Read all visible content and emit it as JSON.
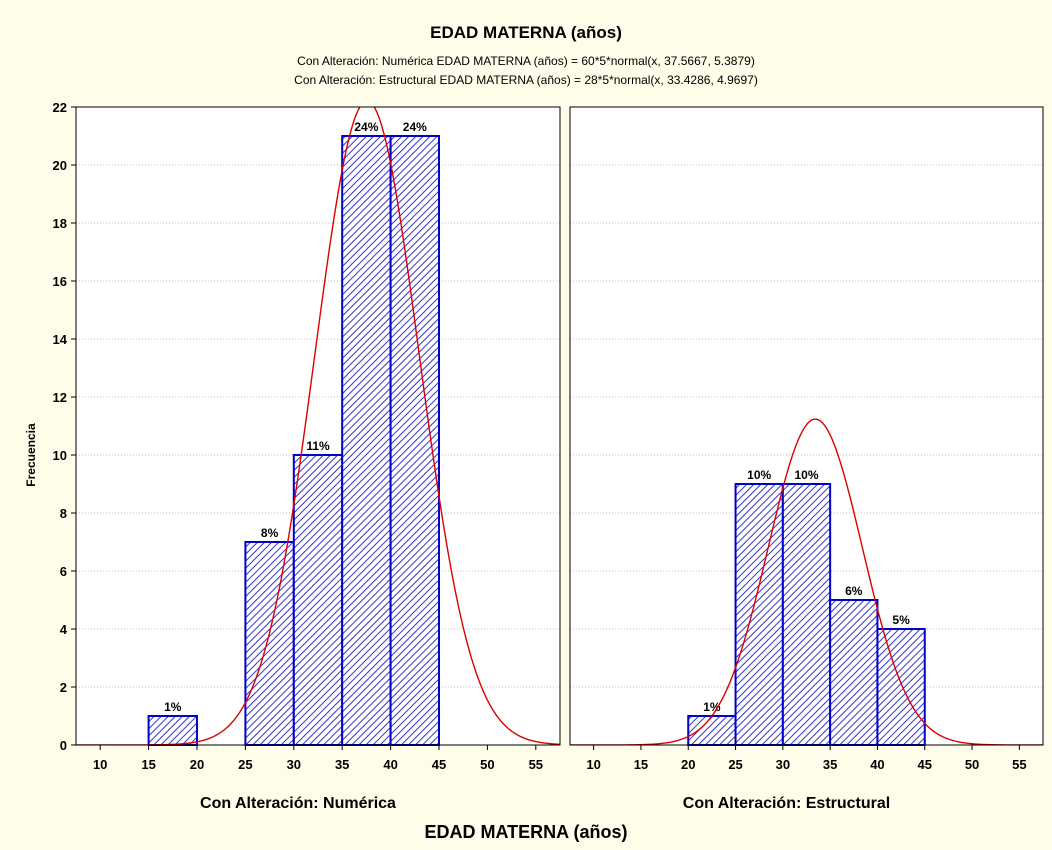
{
  "colors": {
    "background": "#fdfde9",
    "plot_background": "#ffffff",
    "bar_stroke": "#0000cc",
    "bar_hatch": "#3333cc",
    "curve": "#dd0000",
    "grid": "#bdbdbd"
  },
  "chart_data": {
    "type": "bar",
    "title": "EDAD MATERNA (años)",
    "subtitles": [
      "Con Alteración: Numérica EDAD MATERNA (años) = 60*5*normal(x, 37.5667, 5.3879)",
      "Con Alteración: Estructural EDAD MATERNA (años) = 28*5*normal(x, 33.4286, 4.9697)"
    ],
    "xlabel": "EDAD MATERNA (años)",
    "ylabel": "Frecuencia",
    "ylim": [
      0,
      22
    ],
    "yticks": [
      0,
      2,
      4,
      6,
      8,
      10,
      12,
      14,
      16,
      18,
      20,
      22
    ],
    "xlim": [
      7.5,
      57.5
    ],
    "xticks": [
      10,
      15,
      20,
      25,
      30,
      35,
      40,
      45,
      50,
      55
    ],
    "grid": true,
    "panels": [
      {
        "label": "Con Alteración: Numérica",
        "bins": [
          {
            "from": 15,
            "to": 20,
            "count": 1,
            "label": "1%"
          },
          {
            "from": 25,
            "to": 30,
            "count": 7,
            "label": "8%"
          },
          {
            "from": 30,
            "to": 35,
            "count": 10,
            "label": "11%"
          },
          {
            "from": 35,
            "to": 40,
            "count": 21,
            "label": "24%"
          },
          {
            "from": 40,
            "to": 45,
            "count": 21,
            "label": "24%"
          }
        ],
        "normal_fit": {
          "n": 60,
          "width": 5,
          "mean": 37.5667,
          "sd": 5.3879
        }
      },
      {
        "label": "Con Alteración: Estructural",
        "bins": [
          {
            "from": 20,
            "to": 25,
            "count": 1,
            "label": "1%"
          },
          {
            "from": 25,
            "to": 30,
            "count": 9,
            "label": "10%"
          },
          {
            "from": 30,
            "to": 35,
            "count": 9,
            "label": "10%"
          },
          {
            "from": 35,
            "to": 40,
            "count": 5,
            "label": "6%"
          },
          {
            "from": 40,
            "to": 45,
            "count": 4,
            "label": "5%"
          }
        ],
        "normal_fit": {
          "n": 28,
          "width": 5,
          "mean": 33.4286,
          "sd": 4.9697
        }
      }
    ]
  }
}
